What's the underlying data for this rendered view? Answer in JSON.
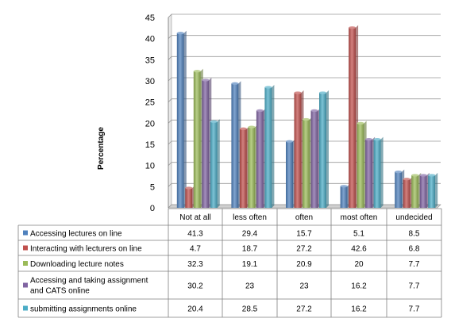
{
  "chart_data": {
    "type": "bar",
    "title": "",
    "xlabel": "",
    "ylabel": "Percentage",
    "ylim": [
      0,
      45
    ],
    "yticks": [
      0,
      5,
      10,
      15,
      20,
      25,
      30,
      35,
      40,
      45
    ],
    "grid": true,
    "legend": "data-table-below",
    "categories": [
      "Not at all",
      "less often",
      "often",
      "most often",
      "undecided"
    ],
    "series": [
      {
        "name": "Accessing lectures on line",
        "color": "#4F81BD",
        "values": [
          41.3,
          29.4,
          15.7,
          5.1,
          8.5
        ]
      },
      {
        "name": "Interacting with lecturers on line",
        "color": "#C0504D",
        "values": [
          4.7,
          18.7,
          27.2,
          42.6,
          6.8
        ]
      },
      {
        "name": "Downloading lecture notes",
        "color": "#9BBB59",
        "values": [
          32.3,
          19.1,
          20.9,
          20,
          7.7
        ]
      },
      {
        "name": "Accessing and taking assignment and CATS online",
        "name_lines": [
          "Accessing and taking assignment",
          "and CATS online"
        ],
        "color": "#8064A2",
        "values": [
          30.2,
          23,
          23,
          16.2,
          7.7
        ]
      },
      {
        "name": "submitting assignments online",
        "color": "#4BACC6",
        "values": [
          20.4,
          28.5,
          27.2,
          16.2,
          7.7
        ]
      }
    ]
  }
}
